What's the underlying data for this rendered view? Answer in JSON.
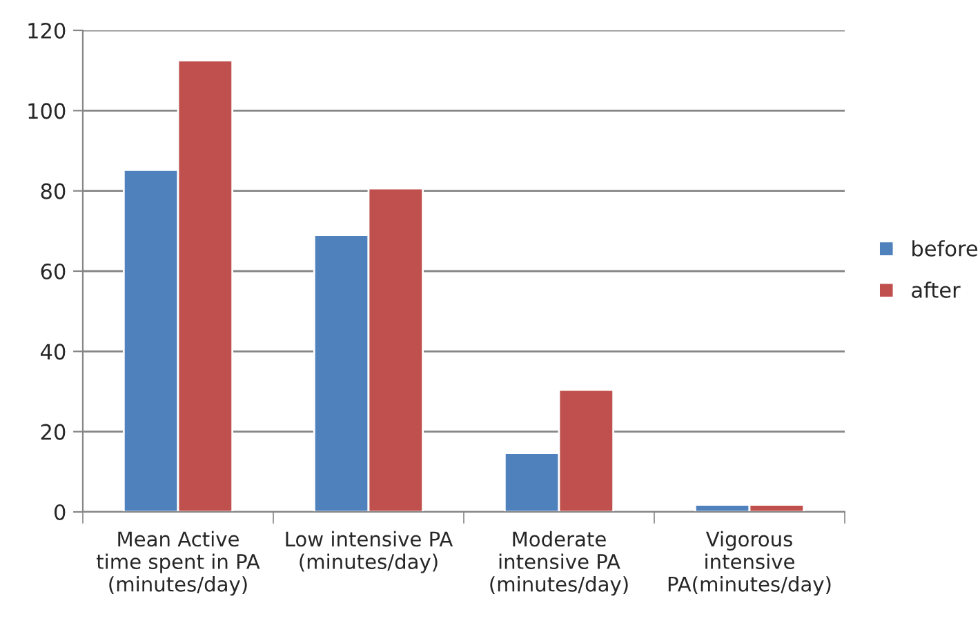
{
  "chart_data": {
    "type": "bar",
    "categories": [
      "Mean Active\ntime spent in PA\n(minutes/day)",
      "Low intensive PA\n(minutes/day)",
      "Moderate\nintensive PA\n(minutes/day)",
      "Vigorous\nintensive\nPA(minutes/day)"
    ],
    "series": [
      {
        "name": "before",
        "color": "#4f81bd",
        "values": [
          85.2,
          69.0,
          14.7,
          1.8
        ]
      },
      {
        "name": "after",
        "color": "#c0504d",
        "values": [
          112.5,
          80.6,
          30.4,
          1.8
        ]
      }
    ],
    "ylim": [
      0,
      120
    ],
    "yticks": [
      0,
      20,
      40,
      60,
      80,
      100,
      120
    ],
    "grid": "y",
    "legend": "right"
  }
}
